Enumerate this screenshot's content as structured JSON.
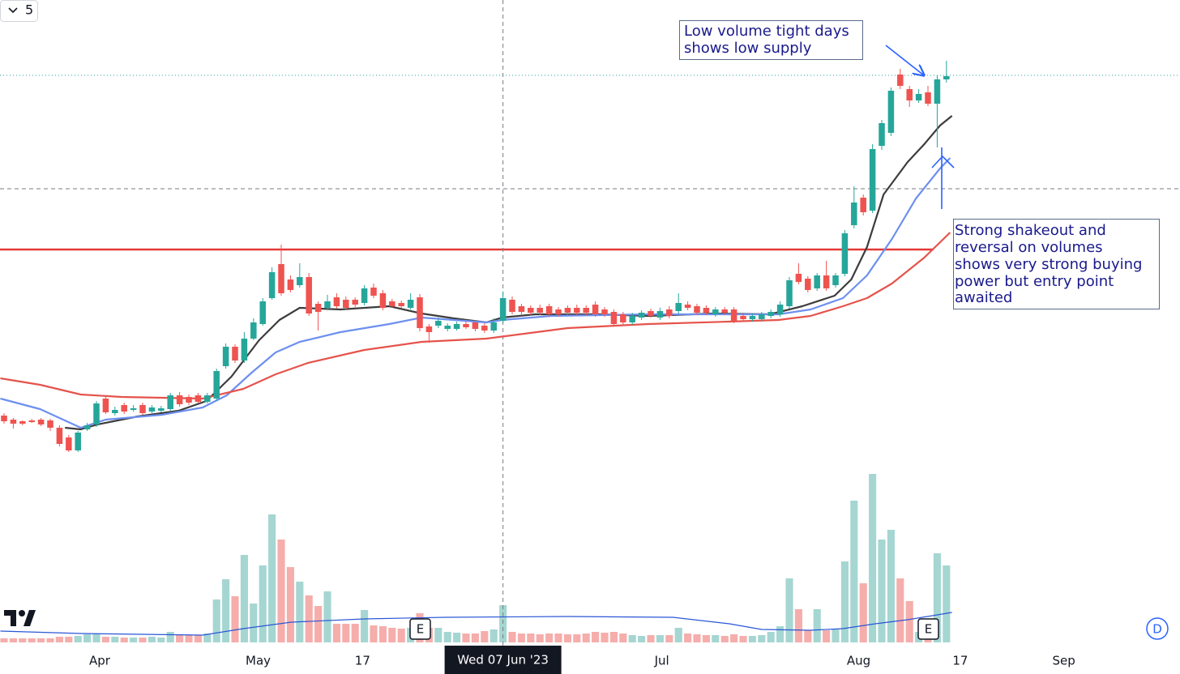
{
  "controls": {
    "collapse_count": "5",
    "mode_button": "D"
  },
  "chart_data": {
    "type": "candlestick",
    "xlim": [
      -0.44,
      127.28
    ],
    "ylim": [
      0,
      116
    ],
    "volume_ylim": [
      0,
      110
    ],
    "up_color": "#26a69a",
    "down_color": "#ef5350",
    "volume_up_color": "#a5d6d2",
    "volume_down_color": "#f5aeab",
    "open": [
      13.4,
      12.4,
      12.0,
      12.2,
      12.4,
      12.2,
      10.4,
      8.0,
      4.8,
      10.0,
      11.2,
      17.6,
      14.0,
      16.0,
      14.8,
      16.0,
      14.4,
      14.6,
      15.0,
      18.4,
      18.0,
      18.4,
      16.8,
      17.6,
      25.6,
      30.4,
      27.0,
      32.4,
      36.0,
      42.4,
      50.8,
      47.0,
      45.6,
      47.6,
      41.0,
      40.0,
      42.6,
      42.0,
      42.0,
      41.2,
      45.0,
      43.6,
      41.6,
      41.2,
      40.0,
      42.6,
      35.4,
      35.6,
      34.8,
      34.8,
      36.0,
      36.4,
      35.6,
      34.4,
      36.8,
      42.0,
      40.4,
      40.0,
      40.0,
      40.4,
      39.6,
      40.0,
      40.0,
      40.0,
      40.8,
      39.6,
      39.0,
      38.4,
      36.4,
      37.6,
      39.2,
      37.6,
      39.6,
      39.2,
      40.8,
      40.4,
      40.0,
      38.4,
      39.6,
      39.6,
      38.0,
      37.2,
      37.2,
      38.0,
      38.4,
      40.4,
      48.4,
      47.2,
      44.8,
      48.0,
      45.6,
      48.4,
      60.4,
      67.2,
      64.0,
      80.0,
      83.2,
      97.6,
      94.0,
      91.2,
      93.2,
      90.4,
      96.4
    ],
    "high": [
      14.0,
      12.8,
      12.2,
      12.6,
      12.8,
      12.6,
      11.0,
      8.6,
      9.6,
      11.6,
      17.0,
      18.4,
      15.6,
      16.6,
      16.0,
      16.6,
      16.0,
      15.8,
      19.0,
      19.2,
      18.6,
      19.0,
      19.0,
      25.0,
      31.2,
      31.0,
      34.0,
      37.4,
      42.4,
      50.0,
      55.6,
      48.0,
      51.0,
      48.6,
      41.6,
      43.2,
      43.6,
      42.8,
      42.6,
      45.6,
      46.0,
      44.4,
      42.2,
      41.8,
      43.6,
      43.4,
      36.0,
      37.6,
      36.2,
      36.6,
      36.6,
      37.0,
      36.2,
      37.4,
      44.0,
      42.8,
      41.0,
      40.6,
      40.8,
      41.0,
      40.2,
      40.6,
      40.8,
      40.6,
      41.6,
      40.2,
      39.6,
      39.0,
      38.8,
      39.4,
      39.8,
      40.0,
      40.4,
      43.6,
      41.6,
      41.0,
      40.6,
      40.2,
      40.2,
      40.2,
      38.6,
      38.6,
      39.0,
      39.6,
      41.6,
      47.6,
      51.0,
      47.8,
      48.6,
      51.6,
      48.6,
      59.2,
      70.0,
      68.0,
      80.4,
      86.4,
      94.4,
      99.0,
      94.8,
      94.0,
      94.8,
      97.4,
      101.0
    ],
    "low": [
      11.4,
      10.2,
      11.0,
      11.6,
      10.8,
      9.6,
      5.8,
      4.4,
      4.4,
      9.6,
      10.6,
      13.8,
      13.4,
      13.8,
      14.4,
      13.6,
      14.0,
      14.2,
      14.6,
      15.6,
      16.0,
      16.4,
      16.4,
      17.0,
      25.0,
      26.4,
      26.4,
      32.0,
      35.6,
      42.0,
      43.0,
      43.8,
      45.0,
      38.0,
      34.4,
      39.4,
      39.8,
      39.4,
      40.2,
      40.6,
      42.4,
      39.4,
      40.0,
      40.0,
      39.6,
      34.2,
      31.4,
      35.0,
      34.2,
      34.4,
      34.8,
      34.2,
      33.8,
      33.8,
      36.2,
      38.4,
      38.4,
      38.2,
      38.2,
      37.8,
      37.8,
      38.2,
      38.2,
      38.0,
      37.8,
      37.8,
      35.4,
      35.6,
      35.8,
      37.0,
      37.6,
      37.0,
      37.4,
      38.6,
      39.4,
      38.2,
      38.2,
      37.8,
      38.2,
      36.2,
      36.6,
      36.6,
      36.6,
      37.4,
      37.8,
      39.8,
      45.8,
      43.8,
      44.2,
      44.2,
      45.0,
      47.8,
      59.6,
      62.8,
      63.4,
      79.0,
      82.4,
      94.0,
      89.6,
      90.6,
      89.8,
      79.6,
      95.6
    ],
    "close": [
      12.0,
      11.4,
      11.4,
      11.8,
      11.2,
      10.4,
      6.4,
      4.8,
      9.2,
      11.0,
      16.4,
      14.2,
      14.8,
      14.4,
      15.2,
      14.0,
      15.4,
      15.2,
      18.4,
      16.2,
      16.6,
      16.8,
      18.4,
      24.4,
      30.4,
      27.0,
      32.4,
      36.4,
      41.6,
      48.8,
      43.6,
      44.4,
      47.6,
      38.6,
      39.0,
      41.6,
      40.4,
      40.0,
      40.8,
      44.8,
      43.0,
      40.0,
      40.4,
      40.4,
      42.0,
      35.0,
      34.0,
      36.8,
      35.6,
      36.0,
      35.2,
      34.8,
      34.4,
      36.4,
      42.4,
      39.0,
      39.0,
      38.8,
      38.8,
      38.4,
      38.4,
      38.8,
      38.8,
      38.8,
      38.4,
      38.4,
      36.0,
      36.4,
      38.0,
      38.8,
      38.0,
      39.2,
      38.0,
      41.2,
      40.0,
      38.8,
      38.8,
      39.6,
      38.8,
      36.8,
      37.2,
      38.0,
      38.4,
      39.0,
      40.8,
      46.8,
      46.4,
      44.4,
      48.0,
      44.8,
      48.0,
      58.4,
      66.0,
      63.6,
      79.2,
      85.6,
      93.6,
      94.8,
      91.2,
      92.8,
      90.4,
      96.4,
      97.2
    ],
    "volume": [
      2.5,
      2.5,
      2.5,
      2.5,
      2.5,
      2.5,
      3.5,
      3.5,
      4,
      5,
      5.5,
      3.5,
      3.5,
      3,
      3,
      3,
      3.5,
      3,
      6.5,
      4.5,
      4.5,
      4.5,
      5.5,
      26.5,
      39,
      28.5,
      54,
      24,
      47.5,
      79,
      63.5,
      46.5,
      37.5,
      29,
      22.5,
      31.5,
      11.5,
      11.5,
      11.5,
      20,
      10.5,
      10,
      9,
      8.5,
      9,
      18,
      9,
      9,
      6.5,
      6,
      5.5,
      5.5,
      7,
      8,
      23,
      6.5,
      5.5,
      5.5,
      5,
      5.5,
      5.5,
      5,
      5,
      5.5,
      6.5,
      6,
      6.5,
      5.5,
      4.5,
      4,
      4.5,
      4.5,
      4.5,
      9,
      5.5,
      5,
      4.5,
      4.5,
      4,
      5,
      4,
      4,
      4.5,
      6.5,
      10,
      39.5,
      20.5,
      7.5,
      20.5,
      7.5,
      8.5,
      50,
      87.5,
      36.5,
      104,
      63.5,
      69.5,
      39.5,
      25.5,
      6.5,
      11.5,
      55,
      47.5
    ],
    "moving_averages": [
      {
        "color": "#3c3c3c",
        "x": [
          6.6,
          8.3,
          10.1,
          14.5,
          18.9,
          21.9,
          24.6,
          27.6,
          29.8,
          32.0,
          36.4,
          41.7,
          45.2,
          48.7,
          52.2,
          53.9,
          57.5,
          64.5,
          69.7,
          76.8,
          82.9,
          86.4,
          89.9,
          91.7,
          93.4,
          95.2,
          97.8,
          99.6,
          101.3,
          102.6
        ],
        "values": [
          10.4,
          10.0,
          11.2,
          13.2,
          14.6,
          17.0,
          23.0,
          32.0,
          37.0,
          40.0,
          39.6,
          40.4,
          38.6,
          37.4,
          36.4,
          37.6,
          38.4,
          38.4,
          38.0,
          38.6,
          38.4,
          40.4,
          43.0,
          47.0,
          55.0,
          68.0,
          76.0,
          80.4,
          85.0,
          87.4
        ]
      },
      {
        "color": "#6d8ff0",
        "x": [
          -0.4,
          3.9,
          8.3,
          11.0,
          17.1,
          21.5,
          24.1,
          26.8,
          29.4,
          32.0,
          36.4,
          41.7,
          45.2,
          48.7,
          52.2,
          53.9,
          59.2,
          69.7,
          78.5,
          83.8,
          87.3,
          90.8,
          93.4,
          96.1,
          98.7,
          101.3,
          102.4
        ],
        "values": [
          17.6,
          15.0,
          10.4,
          12.4,
          13.6,
          15.4,
          18.4,
          24.0,
          29.0,
          31.6,
          34.0,
          36.0,
          37.6,
          37.0,
          36.4,
          37.0,
          38.0,
          38.4,
          38.4,
          38.4,
          39.6,
          42.4,
          48.0,
          57.0,
          67.0,
          74.4,
          77.0
        ]
      },
      {
        "color": "#e5534b",
        "x": [
          -0.4,
          3.9,
          8.3,
          12.7,
          21.5,
          25.9,
          29.4,
          32.9,
          39.0,
          45.2,
          52.2,
          61.0,
          69.7,
          78.5,
          83.8,
          87.3,
          90.8,
          93.4,
          96.1,
          99.6,
          102.4
        ],
        "values": [
          22.6,
          21.0,
          18.6,
          18.0,
          17.6,
          20.0,
          23.6,
          26.4,
          29.6,
          31.6,
          32.4,
          35.0,
          36.0,
          36.6,
          37.0,
          38.0,
          40.4,
          42.4,
          46.0,
          52.4,
          58.6
        ]
      }
    ],
    "volume_ma": {
      "color": "#2a56d6",
      "x": [
        -0.4,
        8.3,
        21.5,
        25.9,
        31.1,
        39.0,
        47.8,
        61.0,
        72.4,
        78.5,
        82.0,
        87.3,
        90.8,
        94.3,
        97.8,
        102.6
      ],
      "values": [
        7,
        5.5,
        4.5,
        8.5,
        12.5,
        14.5,
        15.5,
        16,
        15.5,
        11.5,
        8,
        7.5,
        8.5,
        11.5,
        14,
        18.5
      ]
    },
    "hlines": [
      {
        "value": 54.4,
        "color": "#e53935",
        "style": "solid",
        "x_end": 100.6
      },
      {
        "value": 97.4,
        "color": "#26a69a",
        "style": "dotted",
        "x_end": 127.28
      }
    ],
    "xticks": [
      {
        "value": 10.35,
        "label": "Apr"
      },
      {
        "value": 27.5,
        "label": "May"
      },
      {
        "value": 38.8,
        "label": "17"
      },
      {
        "value": 71.2,
        "label": "Jul"
      },
      {
        "value": 92.5,
        "label": "Aug"
      },
      {
        "value": 103.5,
        "label": "17"
      },
      {
        "value": 114.7,
        "label": "Sep"
      }
    ],
    "crosshair": {
      "x": 54,
      "y": 69.4,
      "label": "Wed 07 Jun '23"
    },
    "earnings": [
      {
        "x": 45,
        "label": "E"
      },
      {
        "x": 100,
        "label": "E"
      }
    ],
    "annotations": [
      {
        "lines": [
          "Low volume tight days",
          "shows low supply"
        ]
      },
      {
        "lines": [
          "Strong shakeout and",
          "reversal on volumes",
          "shows very strong buying",
          "power but entry point",
          "awaited"
        ]
      }
    ]
  }
}
